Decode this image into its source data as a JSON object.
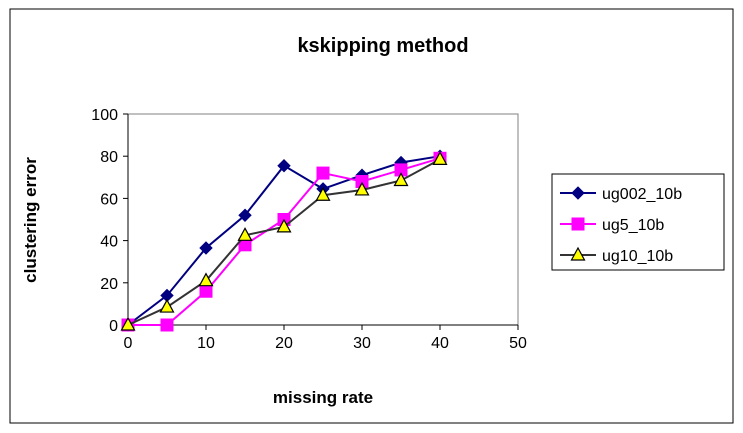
{
  "chart_data": {
    "type": "line",
    "title": "kskipping method",
    "xlabel": "missing rate",
    "ylabel": "clustering error",
    "xlim": [
      0,
      50
    ],
    "ylim": [
      0,
      100
    ],
    "x_ticks": [
      0,
      10,
      20,
      30,
      40,
      50
    ],
    "y_ticks": [
      0,
      20,
      40,
      60,
      80,
      100
    ],
    "x": [
      0,
      5,
      10,
      15,
      20,
      25,
      30,
      35,
      40
    ],
    "grid": false,
    "legend_position": "right",
    "series": [
      {
        "name": "ug002_10b",
        "values": [
          0,
          14,
          36.5,
          52,
          75.5,
          64.5,
          71,
          77,
          80
        ],
        "color": "#000080",
        "marker": "diamond",
        "marker_fill": "#000080"
      },
      {
        "name": "ug5_10b",
        "values": [
          0,
          0,
          16,
          38,
          50,
          72,
          68,
          73.5,
          79
        ],
        "color": "#ff00ff",
        "marker": "square",
        "marker_fill": "#ff00ff"
      },
      {
        "name": "ug10_10b",
        "values": [
          0,
          8.5,
          21,
          42.5,
          46.5,
          61.5,
          64,
          68.5,
          78.5
        ],
        "color": "#333333",
        "marker": "triangle",
        "marker_fill": "#ffff00"
      }
    ]
  }
}
